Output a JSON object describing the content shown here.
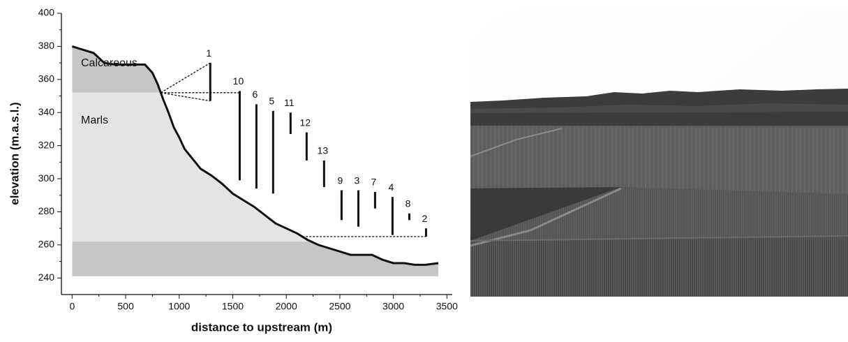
{
  "chart_data": {
    "type": "line",
    "x_label": "distance to upstream (m)",
    "y_label": "elevation (m.a.s.l.)",
    "xlim": [
      -100,
      3550
    ],
    "ylim": [
      230,
      400
    ],
    "xticks": [
      0,
      500,
      1000,
      1500,
      2000,
      2500,
      3000,
      3500
    ],
    "yticks": [
      240,
      260,
      280,
      300,
      320,
      340,
      360,
      380,
      400
    ],
    "series": [
      {
        "color": "#111111",
        "x": [
          0,
          100,
          200,
          300,
          400,
          500,
          600,
          680,
          750,
          800,
          850,
          900,
          950,
          1000,
          1050,
          1100,
          1150,
          1200,
          1300,
          1400,
          1500,
          1600,
          1700,
          1800,
          1900,
          2000,
          2100,
          2200,
          2300,
          2400,
          2500,
          2600,
          2700,
          2800,
          2900,
          3000,
          3100,
          3200,
          3300,
          3420
        ],
        "values": [
          380,
          378,
          376,
          370,
          369,
          369,
          369,
          369,
          364,
          357,
          348,
          340,
          331,
          325,
          318,
          314,
          310,
          306,
          302,
          297,
          291,
          287,
          283,
          278,
          273,
          270,
          267,
          263,
          260,
          258,
          256,
          254,
          254,
          254,
          251,
          249,
          249,
          248,
          248,
          249
        ]
      }
    ],
    "layers": [
      {
        "label": "Calcareous",
        "top": 400,
        "bottom": 352,
        "color": "#c6c6c6"
      },
      {
        "label": "Marls",
        "top": 352,
        "bottom": 262,
        "color": "#e4e4e4"
      },
      {
        "top": 262,
        "bottom": 241,
        "color": "#c6c6c6"
      }
    ],
    "intervals": [
      {
        "label": "1",
        "x": 1290,
        "low": 347,
        "high": 370
      },
      {
        "label": "10",
        "x": 1565,
        "low": 299,
        "high": 353
      },
      {
        "label": "6",
        "x": 1721,
        "low": 294,
        "high": 345
      },
      {
        "label": "5",
        "x": 1877,
        "low": 291,
        "high": 341
      },
      {
        "label": "11",
        "x": 2040,
        "low": 327,
        "high": 340
      },
      {
        "label": "12",
        "x": 2190,
        "low": 311,
        "high": 328
      },
      {
        "label": "13",
        "x": 2353,
        "low": 295,
        "high": 311
      },
      {
        "label": "9",
        "x": 2516,
        "low": 275,
        "high": 293
      },
      {
        "label": "3",
        "x": 2673,
        "low": 271,
        "high": 293
      },
      {
        "label": "7",
        "x": 2829,
        "low": 282,
        "high": 292
      },
      {
        "label": "4",
        "x": 2992,
        "low": 266,
        "high": 289
      },
      {
        "label": "8",
        "x": 3149,
        "low": 275,
        "high": 279
      },
      {
        "label": "2",
        "x": 3305,
        "low": 265,
        "high": 270
      }
    ]
  }
}
